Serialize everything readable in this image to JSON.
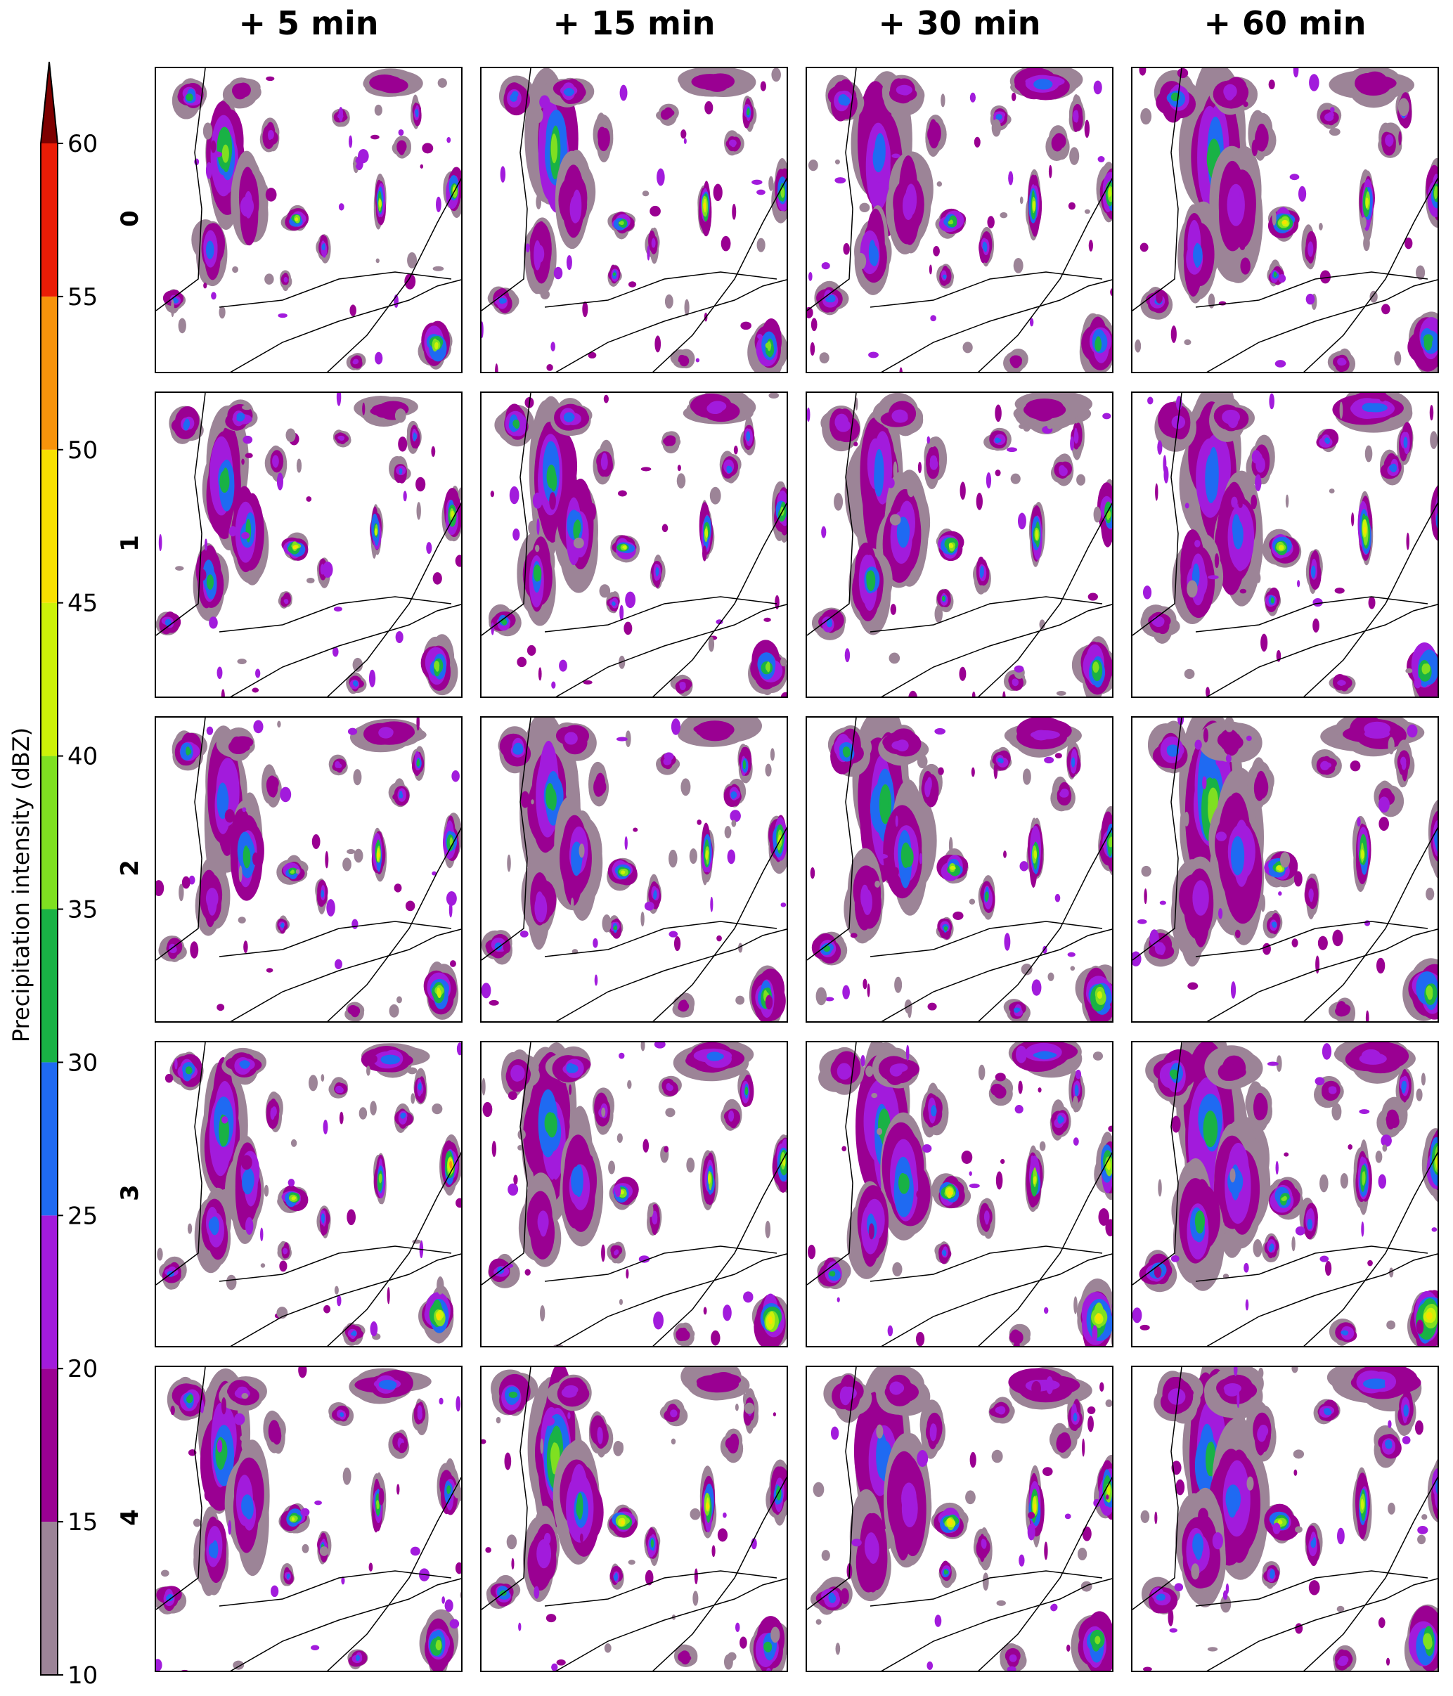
{
  "chart_data": {
    "type": "heatmap",
    "layout": "grid of radar nowcast precipitation maps",
    "column_titles": [
      "+ 5 min",
      "+ 15 min",
      "+ 30 min",
      "+ 60 min"
    ],
    "row_labels": [
      "0",
      "1",
      "2",
      "3",
      "4"
    ],
    "colorbar": {
      "label": "Precipitation intensity (dBZ)",
      "orientation": "vertical",
      "location": "left",
      "extend": "max",
      "ticks": [
        10,
        15,
        20,
        25,
        30,
        35,
        40,
        45,
        50,
        55,
        60
      ],
      "tick_labels": [
        "10",
        "15",
        "20",
        "25",
        "30",
        "35",
        "40",
        "45",
        "50",
        "55",
        "60"
      ],
      "range": [
        10,
        60
      ],
      "bins": [
        {
          "from": 10,
          "to": 15,
          "color": "#9c8497"
        },
        {
          "from": 15,
          "to": 20,
          "color": "#9a0092"
        },
        {
          "from": 20,
          "to": 25,
          "color": "#a21bdc"
        },
        {
          "from": 25,
          "to": 30,
          "color": "#1f6af2"
        },
        {
          "from": 30,
          "to": 35,
          "color": "#19b245"
        },
        {
          "from": 35,
          "to": 40,
          "color": "#7fe021"
        },
        {
          "from": 40,
          "to": 45,
          "color": "#cdf208"
        },
        {
          "from": 45,
          "to": 50,
          "color": "#f8e000"
        },
        {
          "from": 50,
          "to": 55,
          "color": "#f7930b"
        },
        {
          "from": 55,
          "to": 60,
          "color": "#ea1c06"
        }
      ],
      "extend_color": "#7e0000"
    },
    "grid": false
  }
}
